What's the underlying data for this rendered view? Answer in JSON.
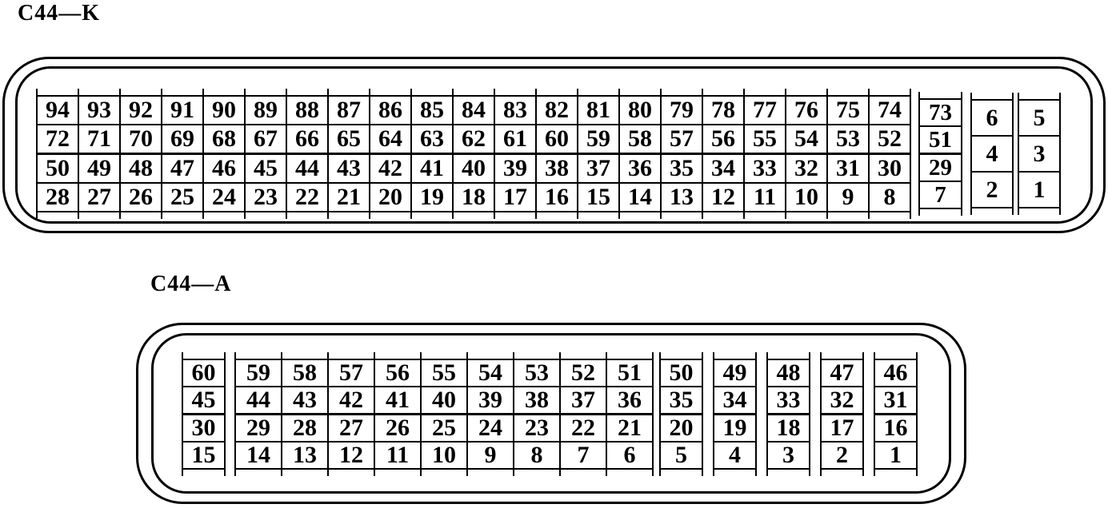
{
  "page": {
    "background": "#ffffff",
    "ink": "#000000"
  },
  "connectors": {
    "k": {
      "label": "C44—K",
      "main": {
        "rows": [
          [
            94,
            93,
            92,
            91,
            90,
            89,
            88,
            87,
            86,
            85,
            84,
            83,
            82,
            81,
            80,
            79,
            78,
            77,
            76,
            75,
            74
          ],
          [
            72,
            71,
            70,
            69,
            68,
            67,
            66,
            65,
            64,
            63,
            62,
            61,
            60,
            59,
            58,
            57,
            56,
            55,
            54,
            53,
            52
          ],
          [
            50,
            49,
            48,
            47,
            46,
            45,
            44,
            43,
            42,
            41,
            40,
            39,
            38,
            37,
            36,
            35,
            34,
            33,
            32,
            31,
            30
          ],
          [
            28,
            27,
            26,
            25,
            24,
            23,
            22,
            21,
            20,
            19,
            18,
            17,
            16,
            15,
            14,
            13,
            12,
            11,
            10,
            9,
            8
          ]
        ]
      },
      "col73": {
        "rows": [
          [
            73
          ],
          [
            51
          ],
          [
            29
          ],
          [
            7
          ]
        ]
      },
      "col642": {
        "rows": [
          [
            6
          ],
          [
            4
          ],
          [
            2
          ]
        ]
      },
      "col531": {
        "rows": [
          [
            5
          ],
          [
            3
          ],
          [
            1
          ]
        ]
      }
    },
    "a": {
      "label": "C44—A",
      "col60": {
        "rows": [
          [
            60
          ],
          [
            45
          ],
          [
            30
          ],
          [
            15
          ]
        ]
      },
      "main": {
        "rows": [
          [
            59,
            58,
            57,
            56,
            55,
            54,
            53,
            52,
            51
          ],
          [
            44,
            43,
            42,
            41,
            40,
            39,
            38,
            37,
            36
          ],
          [
            29,
            28,
            27,
            26,
            25,
            24,
            23,
            22,
            21
          ],
          [
            14,
            13,
            12,
            11,
            10,
            9,
            8,
            7,
            6
          ]
        ]
      },
      "col50": {
        "rows": [
          [
            50
          ],
          [
            35
          ],
          [
            20
          ],
          [
            5
          ]
        ]
      },
      "col49": {
        "rows": [
          [
            49
          ],
          [
            34
          ],
          [
            19
          ],
          [
            4
          ]
        ]
      },
      "col48": {
        "rows": [
          [
            48
          ],
          [
            33
          ],
          [
            18
          ],
          [
            3
          ]
        ]
      },
      "col47": {
        "rows": [
          [
            47
          ],
          [
            32
          ],
          [
            17
          ],
          [
            2
          ]
        ]
      },
      "col46": {
        "rows": [
          [
            46
          ],
          [
            31
          ],
          [
            16
          ],
          [
            1
          ]
        ]
      }
    }
  }
}
